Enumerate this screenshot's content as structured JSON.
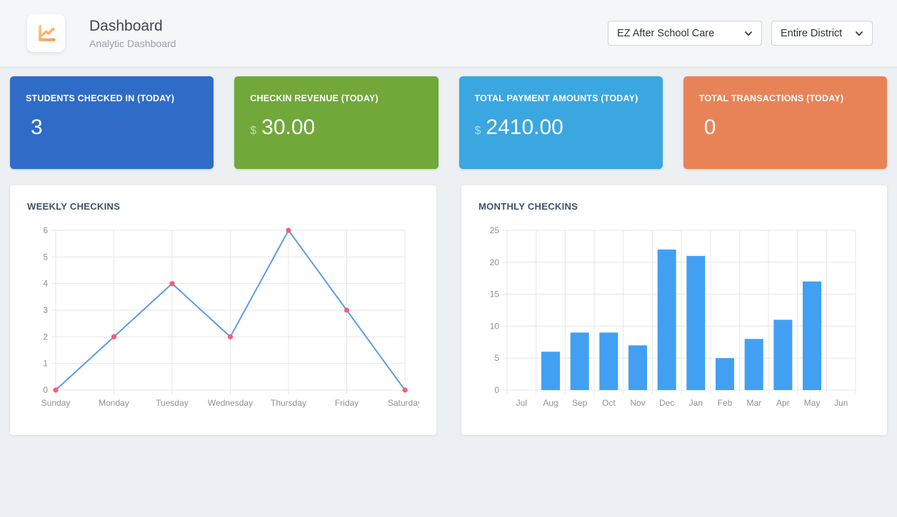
{
  "header": {
    "title": "Dashboard",
    "subtitle": "Analytic Dashboard",
    "icon": "chart-line-icon",
    "school_select": {
      "value": "EZ After School Care"
    },
    "district_select": {
      "value": "Entire District"
    }
  },
  "stat_cards": [
    {
      "label": "STUDENTS CHECKED IN (TODAY)",
      "currency": "",
      "value": "3",
      "color": "#2f6cc8"
    },
    {
      "label": "CHECKIN REVENUE (TODAY)",
      "currency": "$",
      "value": "30.00",
      "color": "#71a83a"
    },
    {
      "label": "TOTAL PAYMENT AMOUNTS (TODAY)",
      "currency": "$",
      "value": "2410.00",
      "color": "#3aa7e0"
    },
    {
      "label": "TOTAL TRANSACTIONS (TODAY)",
      "currency": "",
      "value": "0",
      "color": "#e88358"
    }
  ],
  "chart_data": [
    {
      "type": "line",
      "title": "WEEKLY CHECKINS",
      "categories": [
        "Sunday",
        "Monday",
        "Tuesday",
        "Wednesday",
        "Thursday",
        "Friday",
        "Saturday"
      ],
      "values": [
        0,
        2,
        4,
        2,
        6,
        3,
        0
      ],
      "xlabel": "",
      "ylabel": "",
      "ylim": [
        0,
        6
      ],
      "ytick_step": 1,
      "grid": true,
      "legend": "none",
      "line_color": "#5b9ce8",
      "point_color": "#f95c76"
    },
    {
      "type": "bar",
      "title": "MONTHLY CHECKINS",
      "categories": [
        "Jul",
        "Aug",
        "Sep",
        "Oct",
        "Nov",
        "Dec",
        "Jan",
        "Feb",
        "Mar",
        "Apr",
        "May",
        "Jun"
      ],
      "values": [
        0,
        6,
        9,
        9,
        7,
        22,
        21,
        5,
        8,
        11,
        17,
        0
      ],
      "xlabel": "",
      "ylabel": "",
      "ylim": [
        0,
        25
      ],
      "ytick_step": 5,
      "grid": true,
      "legend": "none",
      "bar_color": "#42a0f2"
    }
  ],
  "theme": {
    "page_bg": "#edf0f3",
    "header_bg": "#f4f6f8",
    "grid_color": "#e7e7e7",
    "tick_text_color": "#8e9296",
    "panel_title_color": "#3d5369",
    "icon_gradient_start": "#fbc57f",
    "icon_gradient_end": "#f59a5d"
  }
}
